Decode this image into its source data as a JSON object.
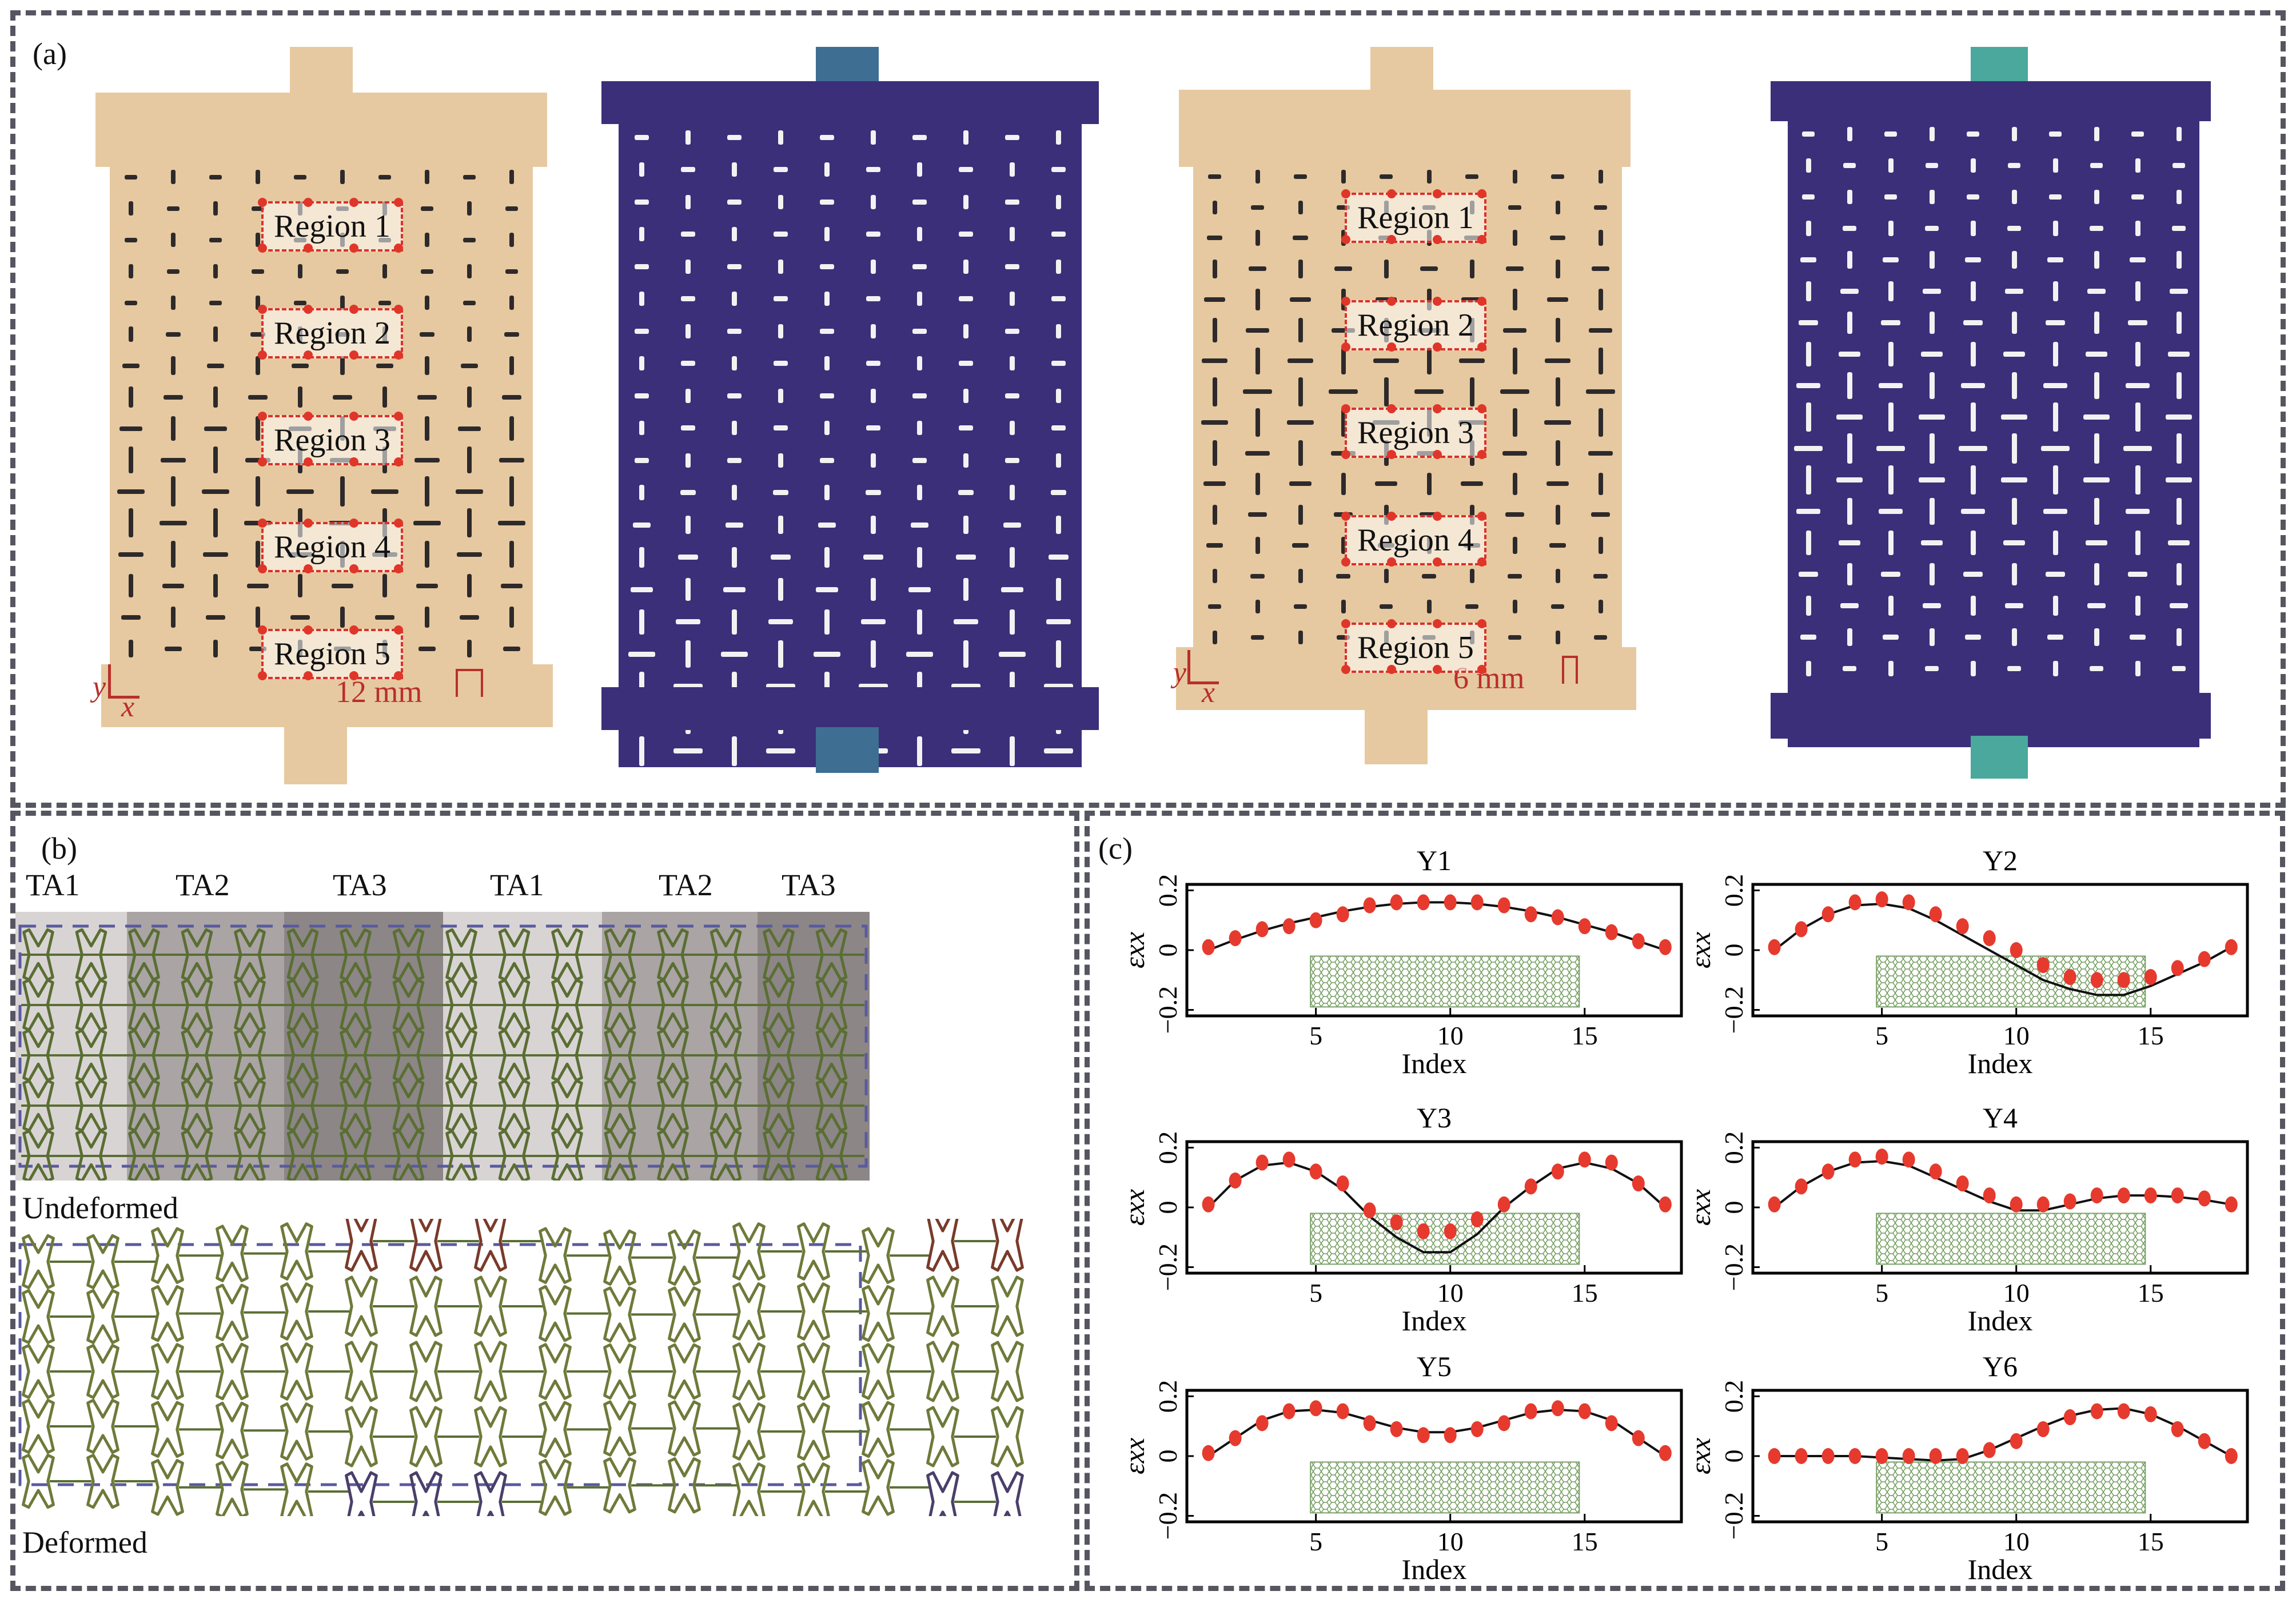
{
  "figure": {
    "panel_labels": {
      "a": "(a)",
      "b": "(b)",
      "c": "(c)"
    },
    "colors": {
      "photo_body": "#e6c9a0",
      "photo_slot": "#2e2a2b",
      "sim_body": "#3b2f7a",
      "sim_slot": "#f2f2f2",
      "sim_highlight": "#4ecba3",
      "region_red": "#d9322a",
      "scale_red": "#b8302a",
      "panel_border": "#55565f",
      "lattice_green": "#5a6e33",
      "marker_red": "#e63a2e",
      "curve_black": "#111111",
      "ta1_band": "#d9d4d4",
      "ta2_band": "#a9a3a3",
      "ta3_band": "#8d8787",
      "dashed_outline": "#5a5aa0"
    }
  },
  "panel_a": {
    "specimens": [
      {
        "kind": "photo",
        "regions": [
          "Region 1",
          "Region 2",
          "Region 3",
          "Region 4",
          "Region 5"
        ],
        "scale_bar": "12 mm",
        "axis_x": "x",
        "axis_y": "y"
      },
      {
        "kind": "simulation"
      },
      {
        "kind": "photo",
        "regions": [
          "Region 1",
          "Region 2",
          "Region 3",
          "Region 4",
          "Region 5"
        ],
        "scale_bar": "6 mm",
        "axis_x": "x",
        "axis_y": "y"
      },
      {
        "kind": "simulation"
      }
    ]
  },
  "panel_b": {
    "top_labels": [
      "TA1",
      "TA2",
      "TA3",
      "TA1",
      "TA2",
      "TA3"
    ],
    "undeformed_label": "Undeformed",
    "deformed_label": "Deformed"
  },
  "chart_data": [
    {
      "type": "line",
      "title": "Y1",
      "xlabel": "Index",
      "ylabel": "ε_xx",
      "xlim": [
        0.2,
        18.6
      ],
      "ylim": [
        -0.22,
        0.22
      ],
      "xticks": [
        5,
        10,
        15
      ],
      "yticks": [
        -0.2,
        0,
        0.2
      ],
      "ytick_labels": [
        "−0.2",
        "0",
        "0.2"
      ],
      "series": [
        {
          "name": "measured",
          "style": "marker",
          "x": [
            1,
            2,
            3,
            4,
            5,
            6,
            7,
            8,
            9,
            10,
            11,
            12,
            13,
            14,
            15,
            16,
            17,
            18
          ],
          "y": [
            0.01,
            0.04,
            0.07,
            0.08,
            0.1,
            0.12,
            0.15,
            0.16,
            0.16,
            0.16,
            0.16,
            0.15,
            0.12,
            0.11,
            0.08,
            0.06,
            0.03,
            0.01
          ]
        },
        {
          "name": "fit",
          "style": "line",
          "x": [
            1,
            2,
            3,
            4,
            5,
            6,
            7,
            8,
            9,
            10,
            11,
            12,
            13,
            14,
            15,
            16,
            17,
            18
          ],
          "y": [
            0.0,
            0.035,
            0.065,
            0.09,
            0.11,
            0.13,
            0.145,
            0.155,
            0.16,
            0.16,
            0.155,
            0.145,
            0.13,
            0.11,
            0.085,
            0.06,
            0.03,
            0.0
          ]
        }
      ]
    },
    {
      "type": "line",
      "title": "Y2",
      "xlabel": "Index",
      "ylabel": "ε_xx",
      "xlim": [
        0.2,
        18.6
      ],
      "ylim": [
        -0.22,
        0.22
      ],
      "xticks": [
        5,
        10,
        15
      ],
      "yticks": [
        -0.2,
        0,
        0.2
      ],
      "ytick_labels": [
        "−0.2",
        "0",
        "0.2"
      ],
      "series": [
        {
          "name": "measured",
          "style": "marker",
          "x": [
            1,
            2,
            3,
            4,
            5,
            6,
            7,
            8,
            9,
            10,
            11,
            12,
            13,
            14,
            15,
            16,
            17,
            18
          ],
          "y": [
            0.01,
            0.07,
            0.12,
            0.16,
            0.17,
            0.16,
            0.12,
            0.08,
            0.04,
            0.0,
            -0.05,
            -0.09,
            -0.1,
            -0.1,
            -0.09,
            -0.06,
            -0.03,
            0.01
          ]
        },
        {
          "name": "fit",
          "style": "line",
          "x": [
            1,
            2,
            3,
            4,
            5,
            6,
            7,
            8,
            9,
            10,
            11,
            12,
            13,
            14,
            15,
            16,
            17,
            18
          ],
          "y": [
            0.0,
            0.07,
            0.12,
            0.15,
            0.155,
            0.14,
            0.1,
            0.05,
            0.0,
            -0.05,
            -0.1,
            -0.13,
            -0.15,
            -0.15,
            -0.12,
            -0.08,
            -0.04,
            0.01
          ]
        }
      ]
    },
    {
      "type": "line",
      "title": "Y3",
      "xlabel": "Index",
      "ylabel": "ε_xx",
      "xlim": [
        0.2,
        18.6
      ],
      "ylim": [
        -0.22,
        0.22
      ],
      "xticks": [
        5,
        10,
        15
      ],
      "yticks": [
        -0.2,
        0,
        0.2
      ],
      "ytick_labels": [
        "−0.2",
        "0",
        "0.2"
      ],
      "series": [
        {
          "name": "measured",
          "style": "marker",
          "x": [
            1,
            2,
            3,
            4,
            5,
            6,
            7,
            8,
            9,
            10,
            11,
            12,
            13,
            14,
            15,
            16,
            17,
            18
          ],
          "y": [
            0.01,
            0.09,
            0.15,
            0.16,
            0.12,
            0.08,
            -0.01,
            -0.05,
            -0.08,
            -0.08,
            -0.04,
            0.01,
            0.07,
            0.12,
            0.16,
            0.15,
            0.08,
            0.01
          ]
        },
        {
          "name": "fit",
          "style": "line",
          "x": [
            1,
            2,
            3,
            4,
            5,
            6,
            7,
            8,
            9,
            10,
            11,
            12,
            13,
            14,
            15,
            16,
            17,
            18
          ],
          "y": [
            0.0,
            0.09,
            0.14,
            0.15,
            0.12,
            0.06,
            -0.03,
            -0.1,
            -0.15,
            -0.15,
            -0.09,
            0.0,
            0.07,
            0.13,
            0.15,
            0.13,
            0.08,
            0.0
          ]
        }
      ]
    },
    {
      "type": "line",
      "title": "Y4",
      "xlabel": "Index",
      "ylabel": "ε_xx",
      "xlim": [
        0.2,
        18.6
      ],
      "ylim": [
        -0.22,
        0.22
      ],
      "xticks": [
        5,
        10,
        15
      ],
      "yticks": [
        -0.2,
        0,
        0.2
      ],
      "ytick_labels": [
        "−0.2",
        "0",
        "0.2"
      ],
      "series": [
        {
          "name": "measured",
          "style": "marker",
          "x": [
            1,
            2,
            3,
            4,
            5,
            6,
            7,
            8,
            9,
            10,
            11,
            12,
            13,
            14,
            15,
            16,
            17,
            18
          ],
          "y": [
            0.01,
            0.07,
            0.12,
            0.16,
            0.17,
            0.16,
            0.12,
            0.08,
            0.04,
            0.01,
            0.01,
            0.02,
            0.04,
            0.04,
            0.04,
            0.04,
            0.03,
            0.01
          ]
        },
        {
          "name": "fit",
          "style": "line",
          "x": [
            1,
            2,
            3,
            4,
            5,
            6,
            7,
            8,
            9,
            10,
            11,
            12,
            13,
            14,
            15,
            16,
            17,
            18
          ],
          "y": [
            0.0,
            0.07,
            0.12,
            0.15,
            0.155,
            0.14,
            0.1,
            0.06,
            0.02,
            -0.01,
            -0.01,
            0.01,
            0.03,
            0.04,
            0.04,
            0.035,
            0.025,
            0.01
          ]
        }
      ]
    },
    {
      "type": "line",
      "title": "Y5",
      "xlabel": "Index",
      "ylabel": "ε_xx",
      "xlim": [
        0.2,
        18.6
      ],
      "ylim": [
        -0.22,
        0.22
      ],
      "xticks": [
        5,
        10,
        15
      ],
      "yticks": [
        -0.2,
        0,
        0.2
      ],
      "ytick_labels": [
        "−0.2",
        "0",
        "0.2"
      ],
      "series": [
        {
          "name": "measured",
          "style": "marker",
          "x": [
            1,
            2,
            3,
            4,
            5,
            6,
            7,
            8,
            9,
            10,
            11,
            12,
            13,
            14,
            15,
            16,
            17,
            18
          ],
          "y": [
            0.01,
            0.06,
            0.11,
            0.15,
            0.16,
            0.15,
            0.11,
            0.09,
            0.07,
            0.07,
            0.09,
            0.11,
            0.15,
            0.16,
            0.15,
            0.11,
            0.06,
            0.01
          ]
        },
        {
          "name": "fit",
          "style": "line",
          "x": [
            1,
            2,
            3,
            4,
            5,
            6,
            7,
            8,
            9,
            10,
            11,
            12,
            13,
            14,
            15,
            16,
            17,
            18
          ],
          "y": [
            0.0,
            0.06,
            0.12,
            0.15,
            0.155,
            0.145,
            0.12,
            0.095,
            0.08,
            0.08,
            0.095,
            0.12,
            0.145,
            0.155,
            0.15,
            0.12,
            0.06,
            0.0
          ]
        }
      ]
    },
    {
      "type": "line",
      "title": "Y6",
      "xlabel": "Index",
      "ylabel": "ε_xx",
      "xlim": [
        0.2,
        18.6
      ],
      "ylim": [
        -0.22,
        0.22
      ],
      "xticks": [
        5,
        10,
        15
      ],
      "yticks": [
        -0.2,
        0,
        0.2
      ],
      "ytick_labels": [
        "−0.2",
        "0",
        "0.2"
      ],
      "series": [
        {
          "name": "measured",
          "style": "marker",
          "x": [
            1,
            2,
            3,
            4,
            5,
            6,
            7,
            8,
            9,
            10,
            11,
            12,
            13,
            14,
            15,
            16,
            17,
            18
          ],
          "y": [
            0.0,
            0.0,
            0.0,
            0.0,
            0.0,
            0.0,
            0.0,
            0.0,
            0.02,
            0.05,
            0.09,
            0.13,
            0.15,
            0.15,
            0.14,
            0.09,
            0.05,
            0.0
          ]
        },
        {
          "name": "fit",
          "style": "line",
          "x": [
            1,
            2,
            3,
            4,
            5,
            6,
            7,
            8,
            9,
            10,
            11,
            12,
            13,
            14,
            15,
            16,
            17,
            18
          ],
          "y": [
            0.0,
            0.0,
            0.0,
            0.0,
            -0.005,
            -0.01,
            -0.015,
            -0.01,
            0.02,
            0.06,
            0.1,
            0.135,
            0.155,
            0.16,
            0.14,
            0.1,
            0.05,
            0.0
          ]
        }
      ]
    }
  ]
}
